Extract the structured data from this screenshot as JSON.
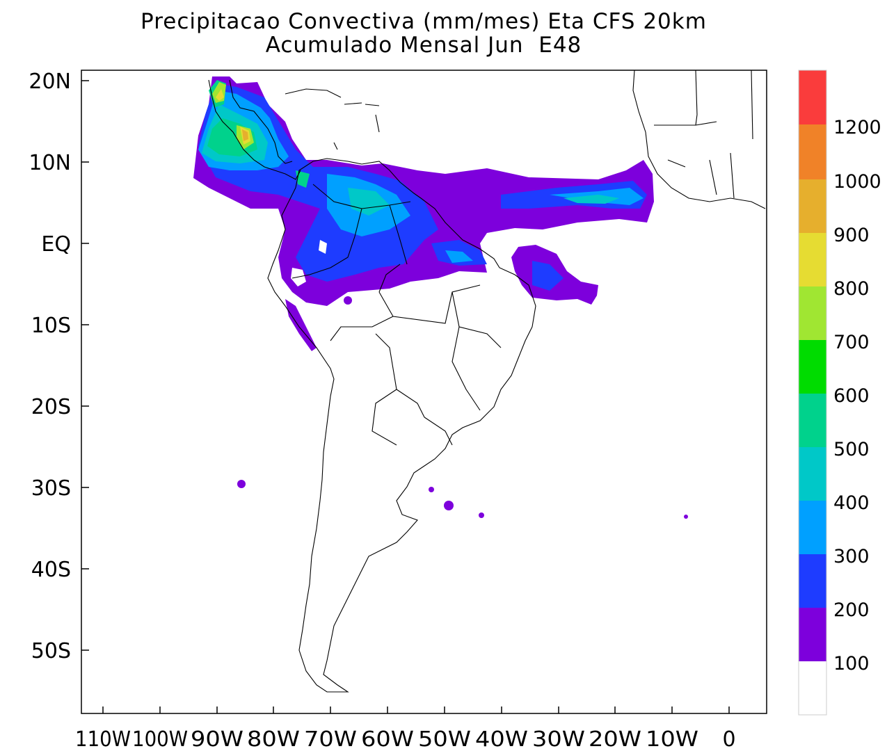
{
  "title": {
    "line1": "Precipitacao Convectiva (mm/mes) Eta CFS 20km",
    "line2": "Acumulado Mensal Jun  E48"
  },
  "axes": {
    "lat_labels": [
      "20N",
      "10N",
      "EQ",
      "10S",
      "20S",
      "30S",
      "40S",
      "50S"
    ],
    "lon_labels": [
      "110W",
      "100W",
      "90W",
      "80W",
      "70W",
      "60W",
      "50W",
      "40W",
      "30W",
      "20W",
      "10W",
      "0"
    ]
  },
  "colorbar": {
    "labels": [
      "100",
      "200",
      "300",
      "400",
      "500",
      "600",
      "700",
      "800",
      "900",
      "1000",
      "1200"
    ],
    "colors": [
      "#ffffff",
      "#7d00dc",
      "#1e3cff",
      "#00a0ff",
      "#00c8c8",
      "#00d28c",
      "#00dc00",
      "#a0e632",
      "#e6dc32",
      "#e6af2d",
      "#f08228",
      "#fa3c3c"
    ]
  }
}
